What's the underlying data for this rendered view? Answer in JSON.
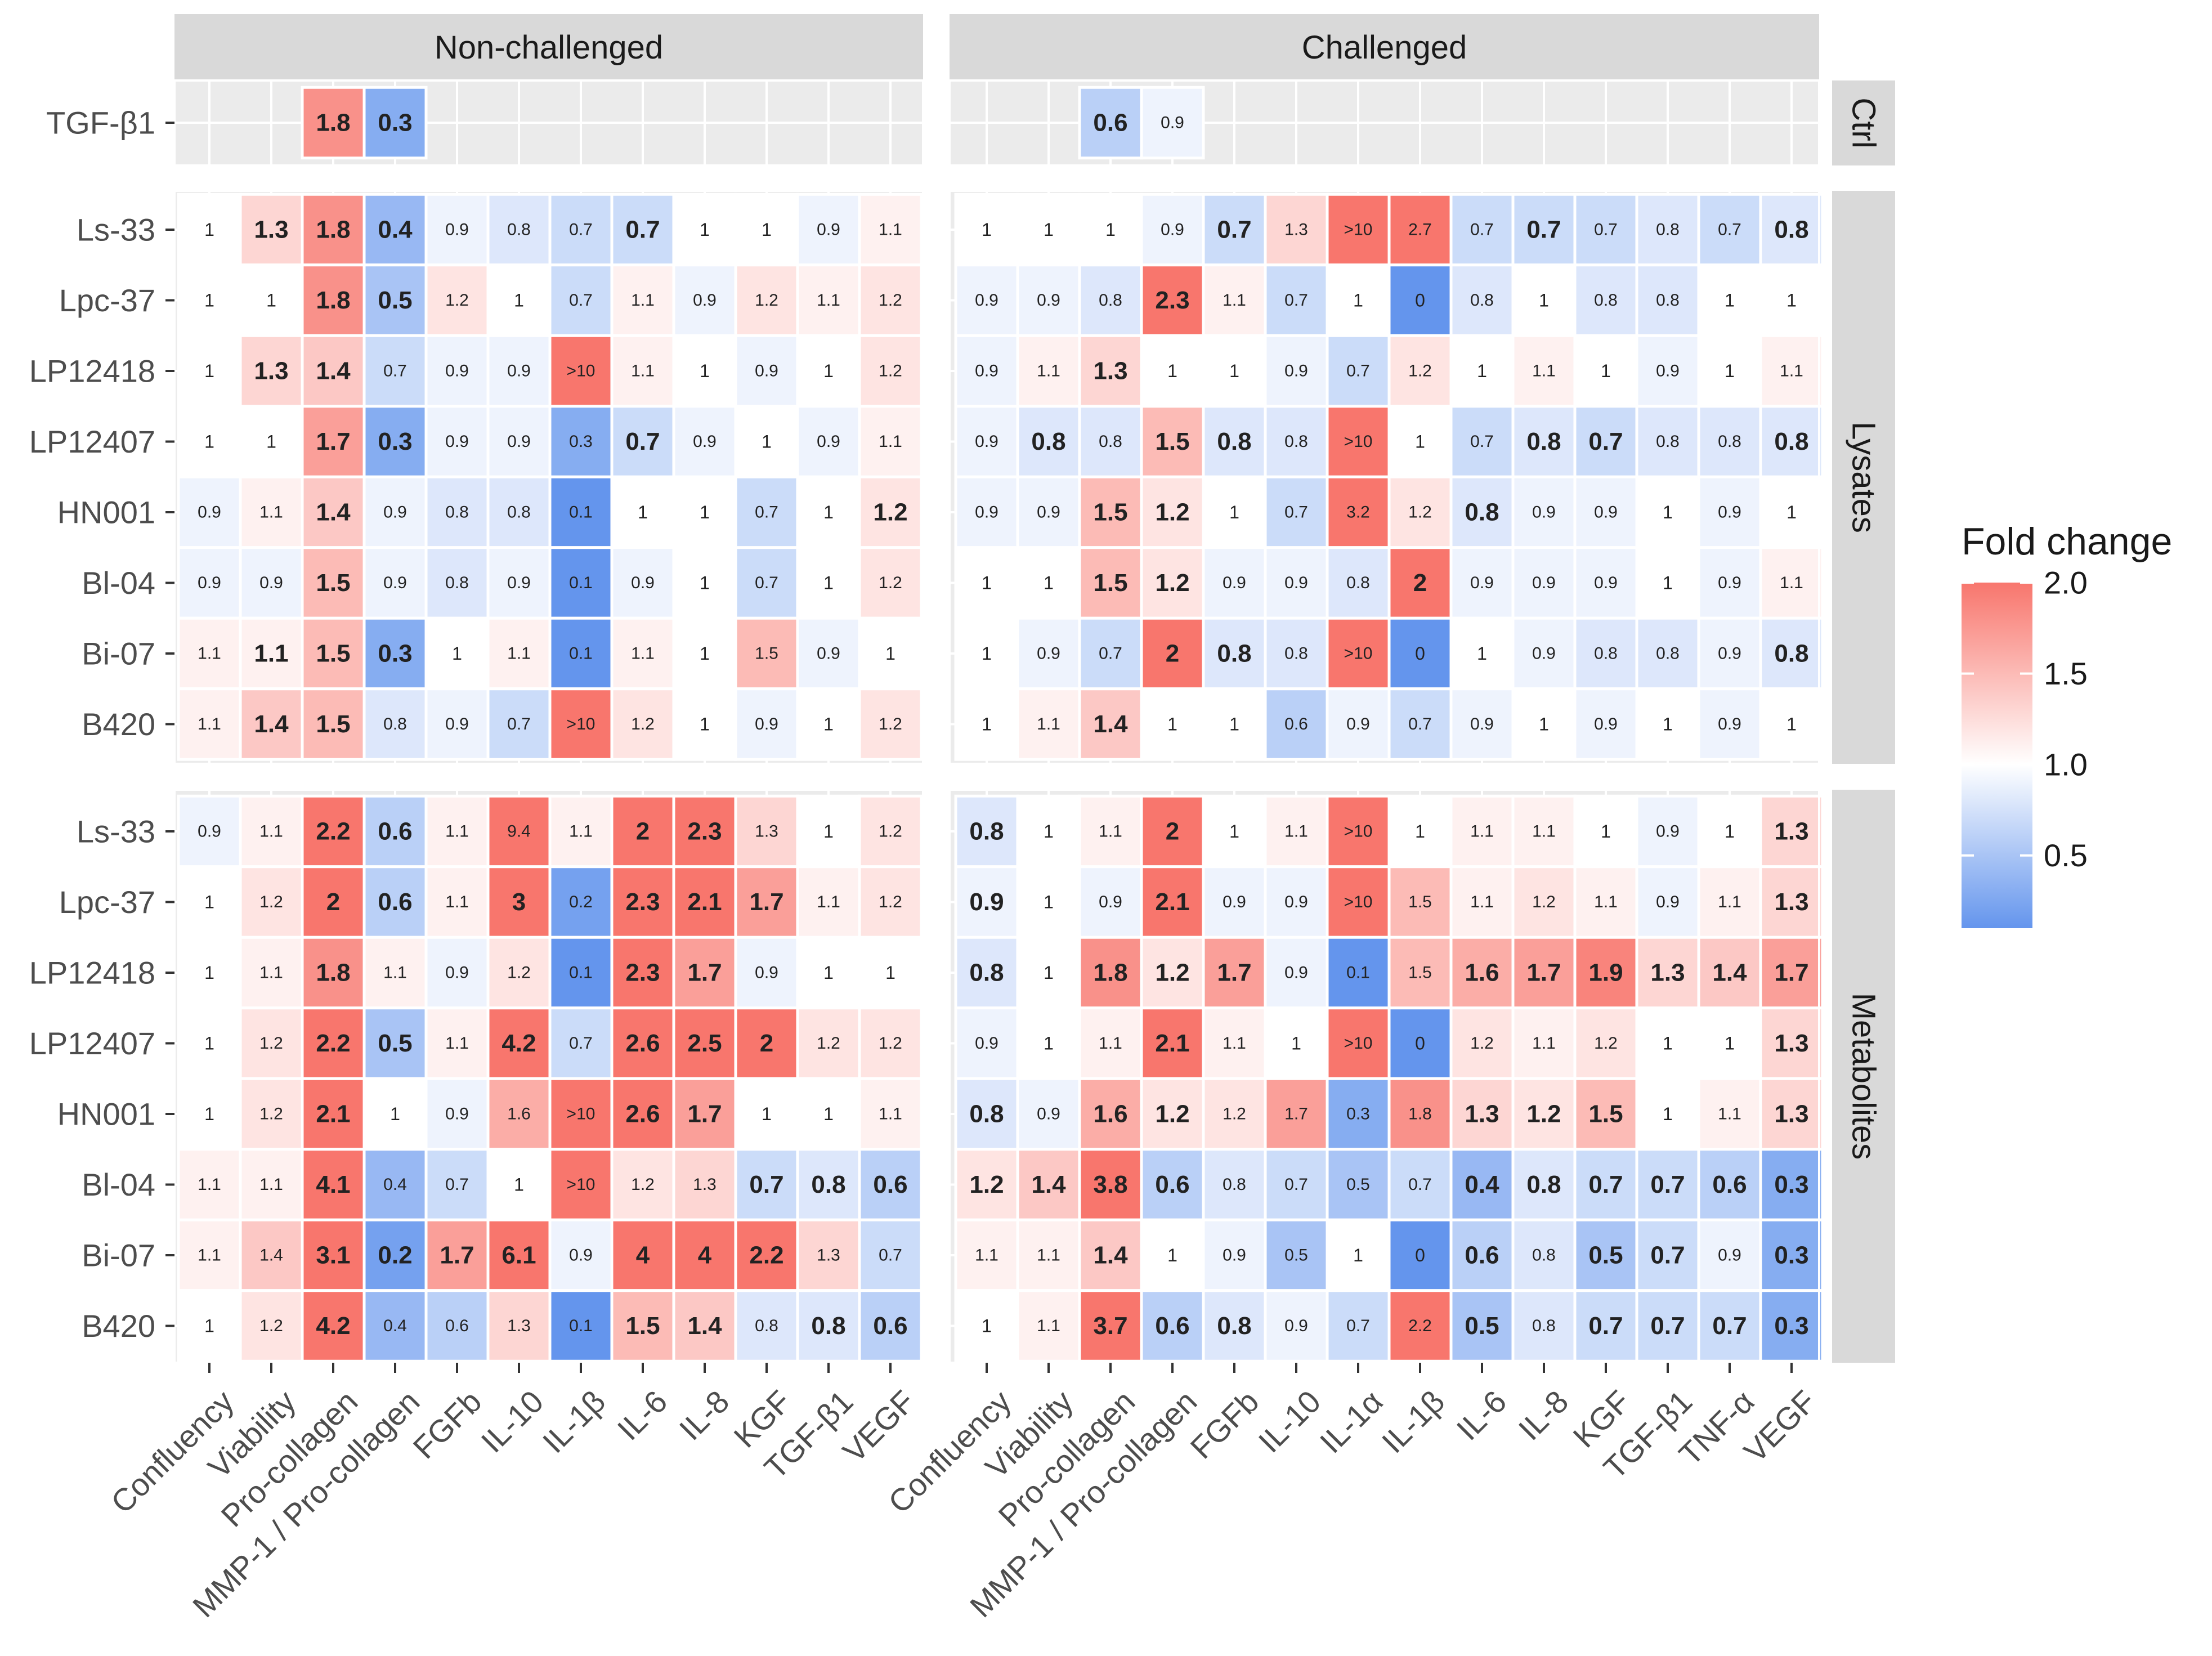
{
  "chart_data": {
    "type": "heatmap",
    "legend": {
      "title": "Fold change",
      "ticks": [
        "2.0",
        "1.5",
        "1.0",
        "0.5"
      ],
      "range": [
        0.1,
        2.0
      ],
      "low_color": "#6495ED",
      "mid_color": "#FFFFFF",
      "high_color": "#F8766D",
      "midpoint": 1.0
    },
    "column_facets": [
      "Non-challenged",
      "Challenged"
    ],
    "row_facets": [
      "Ctrl",
      "Lysates",
      "Metabolites"
    ],
    "columns": {
      "Non-challenged": [
        "Confluency",
        "Viability",
        "Pro-collagen",
        "MMP-1 / Pro-collagen",
        "FGFb",
        "IL-10",
        "IL-1β",
        "IL-6",
        "IL-8",
        "KGF",
        "TGF-β1",
        "VEGF"
      ],
      "Challenged": [
        "Confluency",
        "Viability",
        "Pro-collagen",
        "MMP-1 / Pro-collagen",
        "FGFb",
        "IL-10",
        "IL-1α",
        "IL-1β",
        "IL-6",
        "IL-8",
        "KGF",
        "TGF-β1",
        "TNF-α",
        "VEGF"
      ]
    },
    "rows": {
      "Ctrl": [
        "TGF-β1"
      ],
      "Lysates": [
        "Ls-33",
        "Lpc-37",
        "LP12418",
        "LP12407",
        "HN001",
        "Bl-04",
        "Bi-07",
        "B420"
      ],
      "Metabolites": [
        "Ls-33",
        "Lpc-37",
        "LP12418",
        "LP12407",
        "HN001",
        "Bl-04",
        "Bi-07",
        "B420"
      ]
    },
    "cells": {
      "Ctrl": {
        "Non-challenged": [
          [
            null,
            null,
            "1.8*",
            "0.3*",
            null,
            null,
            null,
            null,
            null,
            null,
            null,
            null
          ]
        ],
        "Challenged": [
          [
            null,
            null,
            "0.6*",
            "0.9",
            null,
            null,
            null,
            null,
            null,
            null,
            null,
            null,
            null,
            null
          ]
        ]
      },
      "Lysates": {
        "Non-challenged": [
          [
            "1",
            "1.3*",
            "1.8*",
            "0.4*",
            "0.9",
            "0.8",
            "0.7",
            "0.7*",
            "1",
            "1",
            "0.9",
            "1.1"
          ],
          [
            "1",
            "1",
            "1.8*",
            "0.5*",
            "1.2",
            "1",
            "0.7",
            "1.1",
            "0.9",
            "1.2",
            "1.1",
            "1.2"
          ],
          [
            "1",
            "1.3*",
            "1.4*",
            "0.7",
            "0.9",
            "0.9",
            ">10",
            "1.1",
            "1",
            "0.9",
            "1",
            "1.2"
          ],
          [
            "1",
            "1",
            "1.7*",
            "0.3*",
            "0.9",
            "0.9",
            "0.3",
            "0.7*",
            "0.9",
            "1",
            "0.9",
            "1.1"
          ],
          [
            "0.9",
            "1.1",
            "1.4*",
            "0.9",
            "0.8",
            "0.8",
            "0.1",
            "1",
            "1",
            "0.7",
            "1",
            "1.2*"
          ],
          [
            "0.9",
            "0.9",
            "1.5*",
            "0.9",
            "0.8",
            "0.9",
            "0.1",
            "0.9",
            "1",
            "0.7",
            "1",
            "1.2"
          ],
          [
            "1.1",
            "1.1*",
            "1.5*",
            "0.3*",
            "1",
            "1.1",
            "0.1",
            "1.1",
            "1",
            "1.5",
            "0.9",
            "1"
          ],
          [
            "1.1",
            "1.4*",
            "1.5*",
            "0.8",
            "0.9",
            "0.7",
            ">10",
            "1.2",
            "1",
            "0.9",
            "1",
            "1.2"
          ]
        ],
        "Challenged": [
          [
            "1",
            "1",
            "1",
            "0.9",
            "0.7*",
            "1.3",
            ">10",
            "2.7",
            "0.7",
            "0.7*",
            "0.7",
            "0.8",
            "0.7",
            "0.8*"
          ],
          [
            "0.9",
            "0.9",
            "0.8",
            "2.3*",
            "1.1",
            "0.7",
            "1",
            "0",
            "0.8",
            "1",
            "0.8",
            "0.8",
            "1",
            "1"
          ],
          [
            "0.9",
            "1.1",
            "1.3*",
            "1",
            "1",
            "0.9",
            "0.7",
            "1.2",
            "1",
            "1.1",
            "1",
            "0.9",
            "1",
            "1.1"
          ],
          [
            "0.9",
            "0.8*",
            "0.8",
            "1.5*",
            "0.8*",
            "0.8",
            ">10",
            "1",
            "0.7",
            "0.8*",
            "0.7*",
            "0.8",
            "0.8",
            "0.8*"
          ],
          [
            "0.9",
            "0.9",
            "1.5*",
            "1.2*",
            "1",
            "0.7",
            "3.2",
            "1.2",
            "0.8*",
            "0.9",
            "0.9",
            "1",
            "0.9",
            "1"
          ],
          [
            "1",
            "1",
            "1.5*",
            "1.2*",
            "0.9",
            "0.9",
            "0.8",
            "2*",
            "0.9",
            "0.9",
            "0.9",
            "1",
            "0.9",
            "1.1"
          ],
          [
            "1",
            "0.9",
            "0.7",
            "2*",
            "0.8*",
            "0.8",
            ">10",
            "0",
            "1",
            "0.9",
            "0.8",
            "0.8",
            "0.9",
            "0.8*"
          ],
          [
            "1",
            "1.1",
            "1.4*",
            "1",
            "1",
            "0.6",
            "0.9",
            "0.7",
            "0.9",
            "1",
            "0.9",
            "1",
            "0.9",
            "1"
          ]
        ]
      },
      "Metabolites": {
        "Non-challenged": [
          [
            "0.9",
            "1.1",
            "2.2*",
            "0.6*",
            "1.1",
            "9.4",
            "1.1",
            "2*",
            "2.3*",
            "1.3",
            "1",
            "1.2"
          ],
          [
            "1",
            "1.2",
            "2*",
            "0.6*",
            "1.1",
            "3*",
            "0.2",
            "2.3*",
            "2.1*",
            "1.7*",
            "1.1",
            "1.2"
          ],
          [
            "1",
            "1.1",
            "1.8*",
            "1.1",
            "0.9",
            "1.2",
            "0.1",
            "2.3*",
            "1.7*",
            "0.9",
            "1",
            "1"
          ],
          [
            "1",
            "1.2",
            "2.2*",
            "0.5*",
            "1.1",
            "4.2*",
            "0.7",
            "2.6*",
            "2.5*",
            "2*",
            "1.2",
            "1.2"
          ],
          [
            "1",
            "1.2",
            "2.1*",
            "1",
            "0.9",
            "1.6",
            ">10",
            "2.6*",
            "1.7*",
            "1",
            "1",
            "1.1"
          ],
          [
            "1.1",
            "1.1",
            "4.1*",
            "0.4",
            "0.7",
            "1",
            ">10",
            "1.2",
            "1.3",
            "0.7*",
            "0.8*",
            "0.6*"
          ],
          [
            "1.1",
            "1.4",
            "3.1*",
            "0.2*",
            "1.7*",
            "6.1*",
            "0.9",
            "4*",
            "4*",
            "2.2*",
            "1.3",
            "0.7"
          ],
          [
            "1",
            "1.2",
            "4.2*",
            "0.4",
            "0.6",
            "1.3",
            "0.1",
            "1.5*",
            "1.4*",
            "0.8",
            "0.8*",
            "0.6*"
          ]
        ],
        "Challenged": [
          [
            "0.8*",
            "1",
            "1.1",
            "2*",
            "1",
            "1.1",
            ">10",
            "1",
            "1.1",
            "1.1",
            "1",
            "0.9",
            "1",
            "1.3*"
          ],
          [
            "0.9*",
            "1",
            "0.9",
            "2.1*",
            "0.9",
            "0.9",
            ">10",
            "1.5",
            "1.1",
            "1.2",
            "1.1",
            "0.9",
            "1.1",
            "1.3*"
          ],
          [
            "0.8*",
            "1",
            "1.8*",
            "1.2*",
            "1.7*",
            "0.9",
            "0.1",
            "1.5",
            "1.6*",
            "1.7*",
            "1.9*",
            "1.3*",
            "1.4*",
            "1.7*"
          ],
          [
            "0.9",
            "1",
            "1.1",
            "2.1*",
            "1.1",
            "1",
            ">10",
            "0",
            "1.2",
            "1.1",
            "1.2",
            "1",
            "1",
            "1.3*"
          ],
          [
            "0.8*",
            "0.9",
            "1.6*",
            "1.2*",
            "1.2",
            "1.7",
            "0.3",
            "1.8",
            "1.3*",
            "1.2*",
            "1.5*",
            "1",
            "1.1",
            "1.3*"
          ],
          [
            "1.2*",
            "1.4*",
            "3.8*",
            "0.6*",
            "0.8",
            "0.7",
            "0.5",
            "0.7",
            "0.4*",
            "0.8*",
            "0.7*",
            "0.7*",
            "0.6*",
            "0.3*"
          ],
          [
            "1.1",
            "1.1",
            "1.4*",
            "1",
            "0.9",
            "0.5",
            "1",
            "0",
            "0.6*",
            "0.8",
            "0.5*",
            "0.7*",
            "0.9",
            "0.3*"
          ],
          [
            "1",
            "1.1",
            "3.7*",
            "0.6*",
            "0.8*",
            "0.9",
            "0.7",
            "2.2",
            "0.5*",
            "0.8",
            "0.7*",
            "0.7*",
            "0.7*",
            "0.3*"
          ]
        ]
      }
    }
  }
}
